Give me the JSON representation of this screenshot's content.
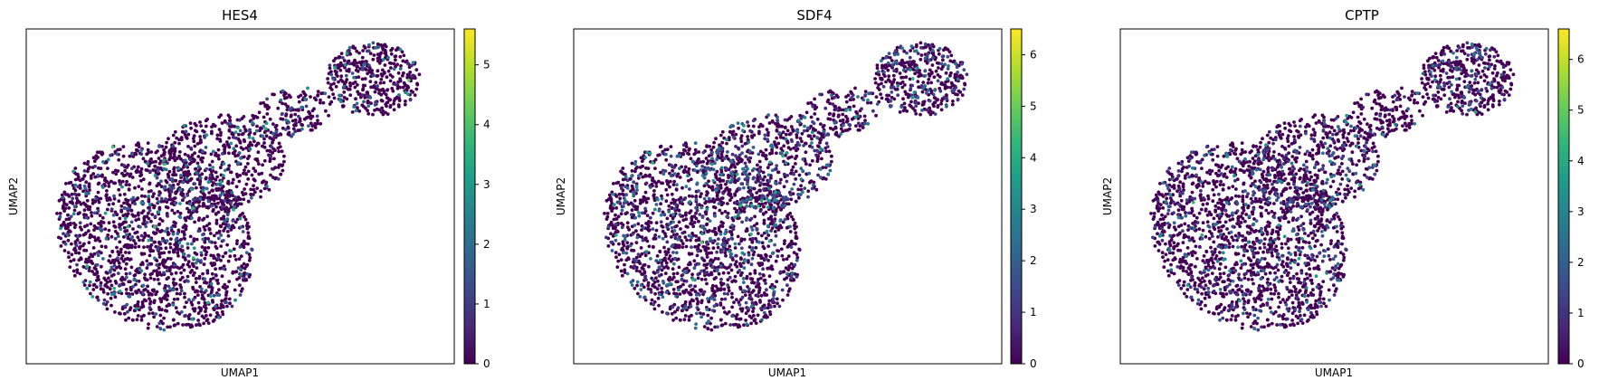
{
  "chart_data": [
    {
      "type": "scatter",
      "title": "HES4",
      "xlabel": "UMAP1",
      "ylabel": "UMAP2",
      "colorbar": {
        "min": 0,
        "max": 5.6,
        "ticks": [
          0,
          1,
          2,
          3,
          4,
          5
        ],
        "colormap": "viridis"
      },
      "n_points": 2700,
      "nonzero_fraction": 0.16,
      "grid": false,
      "legend": "colorbar-right"
    },
    {
      "type": "scatter",
      "title": "SDF4",
      "xlabel": "UMAP1",
      "ylabel": "UMAP2",
      "colorbar": {
        "min": 0,
        "max": 6.5,
        "ticks": [
          0,
          1,
          2,
          3,
          4,
          5,
          6
        ],
        "colormap": "viridis"
      },
      "n_points": 2700,
      "nonzero_fraction": 0.27,
      "grid": false,
      "legend": "colorbar-right"
    },
    {
      "type": "scatter",
      "title": "CPTP",
      "xlabel": "UMAP1",
      "ylabel": "UMAP2",
      "colorbar": {
        "min": 0,
        "max": 6.6,
        "ticks": [
          0,
          1,
          2,
          3,
          4,
          5,
          6
        ],
        "colormap": "viridis"
      },
      "n_points": 2700,
      "nonzero_fraction": 0.22,
      "grid": false,
      "legend": "colorbar-right"
    }
  ],
  "colors": {
    "viridis": [
      "#440154",
      "#482878",
      "#3e4989",
      "#31688e",
      "#26828e",
      "#1f9e89",
      "#35b779",
      "#6ece58",
      "#b5de2b",
      "#fde725"
    ],
    "frame": "#000000",
    "background": "#ffffff"
  }
}
